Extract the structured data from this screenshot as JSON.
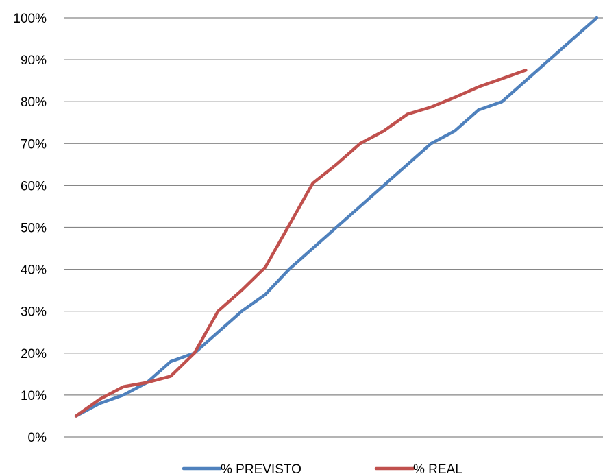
{
  "chart_data": {
    "type": "line",
    "title": "",
    "xlabel": "",
    "ylabel": "",
    "y_tick_labels": [
      "0%",
      "10%",
      "20%",
      "30%",
      "40%",
      "50%",
      "60%",
      "70%",
      "80%",
      "90%",
      "100%"
    ],
    "ylim": [
      0,
      100
    ],
    "grid": true,
    "legend_position": "bottom",
    "series": [
      {
        "name": "% PREVISTO",
        "color": "#4F81BD",
        "values": [
          5,
          8,
          10,
          13,
          18,
          20,
          25,
          30,
          34,
          40,
          45,
          50,
          55,
          60,
          65,
          70,
          73,
          78,
          80,
          85,
          90,
          95,
          100
        ]
      },
      {
        "name": "% REAL",
        "color": "#C0504D",
        "values": [
          5,
          9,
          12,
          13,
          14.5,
          20,
          30,
          35,
          40.5,
          50.5,
          60.5,
          65,
          70,
          73,
          77,
          78.7,
          81,
          83.5,
          85.5,
          87.5
        ]
      }
    ]
  }
}
